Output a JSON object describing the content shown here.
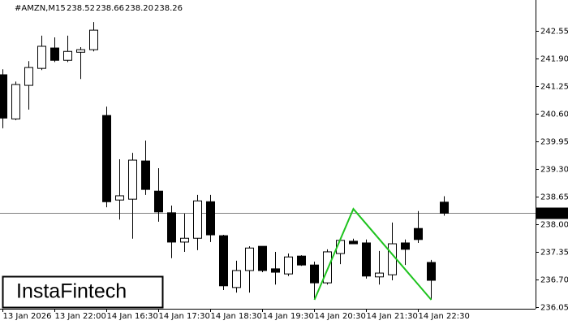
{
  "chart_data": {
    "type": "candlestick",
    "title": "#AMZN,M15",
    "header_values": [
      "238.52",
      "238.66",
      "238.20",
      "238.26"
    ],
    "categories": [
      "13 Jan 2026",
      null,
      null,
      null,
      "13 Jan 22:00",
      null,
      null,
      null,
      "14 Jan 16:30",
      null,
      null,
      null,
      "14 Jan 17:30",
      null,
      null,
      null,
      "14 Jan 18:30",
      null,
      null,
      null,
      "14 Jan 19:30",
      null,
      null,
      null,
      "14 Jan 20:30",
      null,
      null,
      null,
      "14 Jan 21:30",
      null,
      null,
      null,
      "14 Jan 22:30",
      null,
      null
    ],
    "open": [
      241.52,
      240.48,
      241.27,
      241.67,
      242.15,
      241.86,
      242.05,
      242.11,
      240.56,
      238.57,
      238.59,
      239.49,
      238.78,
      238.27,
      237.58,
      237.67,
      238.53,
      237.73,
      236.51,
      236.91,
      237.48,
      236.95,
      236.83,
      237.25,
      237.04,
      236.62,
      237.31,
      237.6,
      237.56,
      236.76,
      236.81,
      237.56,
      237.9,
      237.1,
      238.52
    ],
    "high": [
      241.65,
      241.36,
      241.84,
      242.44,
      242.4,
      242.44,
      242.17,
      242.76,
      240.77,
      239.53,
      239.68,
      239.97,
      239.32,
      238.44,
      238.25,
      238.69,
      238.69,
      237.75,
      237.14,
      237.48,
      237.48,
      237.35,
      237.31,
      237.27,
      237.12,
      237.41,
      237.66,
      237.66,
      237.64,
      237.37,
      238.04,
      237.64,
      238.31,
      237.16,
      238.66
    ],
    "low": [
      240.26,
      240.45,
      240.7,
      241.63,
      241.82,
      241.82,
      241.42,
      242.07,
      238.4,
      238.11,
      237.66,
      238.69,
      238.06,
      237.2,
      237.35,
      237.39,
      237.58,
      236.45,
      236.39,
      236.39,
      236.87,
      236.58,
      236.78,
      237.02,
      236.24,
      236.58,
      237.06,
      237.54,
      236.72,
      236.58,
      236.68,
      237.04,
      237.56,
      236.22,
      238.2
    ],
    "close": [
      240.5,
      241.29,
      241.69,
      242.19,
      241.86,
      242.07,
      242.11,
      242.57,
      238.53,
      238.67,
      239.51,
      238.82,
      238.29,
      237.58,
      237.67,
      238.55,
      237.75,
      236.55,
      236.91,
      237.44,
      236.91,
      236.87,
      237.23,
      237.04,
      236.62,
      237.35,
      237.62,
      237.54,
      236.78,
      236.85,
      237.54,
      237.41,
      237.64,
      236.68,
      238.26
    ],
    "up_color": "#ffffff",
    "down_color": "#000000",
    "ylim": [
      236.01,
      243.28
    ],
    "yticks": [
      242.55,
      {
        "value": 241.9,
        "label": "241.90"
      },
      241.25,
      {
        "value": 240.6,
        "label": "240.60"
      },
      239.95,
      {
        "value": 239.3,
        "label": "239.30"
      },
      238.65,
      {
        "value": 238,
        "label": "238.00"
      },
      237.35,
      {
        "value": 236.7,
        "label": "236.70"
      },
      236.05
    ],
    "current_price": 238.26,
    "pattern": {
      "color": "#1ec31e",
      "x": [
        24,
        27,
        33
      ],
      "y": [
        236.22,
        238.36,
        236.22
      ]
    },
    "brand": "InstaFintech"
  }
}
